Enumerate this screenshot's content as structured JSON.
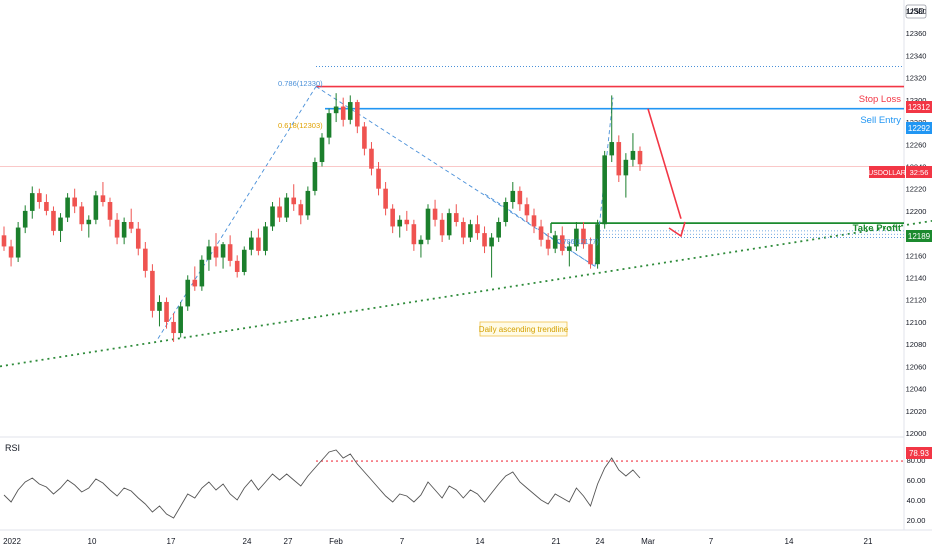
{
  "currency": "USD",
  "price_axis_ticks": [
    "12380",
    "12360",
    "12340",
    "12320",
    "12300",
    "12280",
    "12260",
    "12240",
    "12220",
    "12200",
    "12180",
    "12160",
    "12140",
    "12120",
    "12100",
    "12080",
    "12060",
    "12040",
    "12020",
    "12000"
  ],
  "rsi_axis_ticks": [
    "80.00",
    "60.00",
    "40.00",
    "20.00"
  ],
  "date_ticks": [
    "2022",
    "10",
    "17",
    "24",
    "27",
    "Feb",
    "7",
    "14",
    "21",
    "24",
    "Mar",
    "7",
    "14",
    "21"
  ],
  "labels": {
    "fib_786": "0.786(12330)",
    "fib_618": "0.618(12303)",
    "fib_786_small": "0.786(12177)",
    "stop_loss": "Stop Loss",
    "sell_entry": "Sell Entry",
    "take_profit": "Take Profit",
    "trendline_note": "Daily ascending trendline",
    "rsi": "RSI"
  },
  "badges": {
    "stop_loss": "12312",
    "sell_entry": "12292",
    "take_profit": "12189",
    "symbol": "USDOLLAR",
    "countdown": "32:56",
    "rsi_level": "78.93"
  },
  "colors": {
    "up": "#26a69a",
    "up_dark": "#1b7f2c",
    "down": "#ef5350",
    "stop": "#f23645",
    "entry": "#2196f3",
    "take": "#1b8a2e",
    "trend": "#2e8b3a",
    "fib": "#4a90d9",
    "fib618": "#e0a100",
    "rsi_line": "#555555",
    "rsi_dots": "#f23645"
  },
  "chart_data": {
    "type": "candlestick",
    "symbol": "USDOLLAR",
    "y_range": [
      11990,
      12390
    ],
    "levels": {
      "stop_loss": 12312,
      "sell_entry": 12292,
      "take_profit": 12189,
      "fib_786": 12330,
      "fib_618": 12303,
      "fib_786_small": 12177
    },
    "trendline": {
      "from": [
        0,
        12060
      ],
      "to": [
        932,
        12191
      ]
    },
    "rsi": {
      "range": [
        10,
        100
      ],
      "overbought_level": 78.93
    },
    "candles": [
      [
        12178,
        12186,
        12164,
        12168
      ],
      [
        12168,
        12174,
        12150,
        12158
      ],
      [
        12158,
        12190,
        12154,
        12185
      ],
      [
        12185,
        12205,
        12180,
        12200
      ],
      [
        12200,
        12222,
        12193,
        12216
      ],
      [
        12216,
        12220,
        12202,
        12208
      ],
      [
        12208,
        12215,
        12196,
        12200
      ],
      [
        12200,
        12204,
        12178,
        12182
      ],
      [
        12182,
        12198,
        12172,
        12194
      ],
      [
        12194,
        12216,
        12190,
        12212
      ],
      [
        12212,
        12220,
        12198,
        12204
      ],
      [
        12204,
        12208,
        12182,
        12188
      ],
      [
        12188,
        12196,
        12176,
        12192
      ],
      [
        12192,
        12218,
        12188,
        12214
      ],
      [
        12214,
        12226,
        12204,
        12208
      ],
      [
        12208,
        12212,
        12186,
        12192
      ],
      [
        12192,
        12198,
        12170,
        12176
      ],
      [
        12176,
        12194,
        12170,
        12190
      ],
      [
        12190,
        12202,
        12180,
        12184
      ],
      [
        12184,
        12190,
        12160,
        12166
      ],
      [
        12166,
        12172,
        12140,
        12146
      ],
      [
        12146,
        12152,
        12104,
        12110
      ],
      [
        12110,
        12124,
        12096,
        12118
      ],
      [
        12118,
        12122,
        12094,
        12100
      ],
      [
        12100,
        12108,
        12082,
        12090
      ],
      [
        12090,
        12118,
        12086,
        12114
      ],
      [
        12114,
        12142,
        12110,
        12138
      ],
      [
        12138,
        12150,
        12128,
        12132
      ],
      [
        12132,
        12160,
        12128,
        12156
      ],
      [
        12156,
        12174,
        12146,
        12168
      ],
      [
        12168,
        12180,
        12150,
        12158
      ],
      [
        12158,
        12172,
        12148,
        12170
      ],
      [
        12170,
        12178,
        12150,
        12155
      ],
      [
        12155,
        12160,
        12140,
        12145
      ],
      [
        12145,
        12168,
        12142,
        12165
      ],
      [
        12165,
        12182,
        12160,
        12176
      ],
      [
        12176,
        12184,
        12160,
        12164
      ],
      [
        12164,
        12190,
        12160,
        12186
      ],
      [
        12186,
        12208,
        12182,
        12204
      ],
      [
        12204,
        12212,
        12190,
        12194
      ],
      [
        12194,
        12216,
        12190,
        12212
      ],
      [
        12212,
        12224,
        12200,
        12206
      ],
      [
        12206,
        12210,
        12188,
        12196
      ],
      [
        12196,
        12222,
        12192,
        12218
      ],
      [
        12218,
        12248,
        12214,
        12244
      ],
      [
        12244,
        12270,
        12240,
        12266
      ],
      [
        12266,
        12292,
        12260,
        12288
      ],
      [
        12288,
        12306,
        12280,
        12294
      ],
      [
        12294,
        12302,
        12276,
        12282
      ],
      [
        12282,
        12304,
        12278,
        12298
      ],
      [
        12298,
        12300,
        12270,
        12276
      ],
      [
        12276,
        12280,
        12250,
        12256
      ],
      [
        12256,
        12262,
        12232,
        12238
      ],
      [
        12238,
        12244,
        12214,
        12220
      ],
      [
        12220,
        12226,
        12196,
        12202
      ],
      [
        12202,
        12206,
        12180,
        12186
      ],
      [
        12186,
        12196,
        12176,
        12192
      ],
      [
        12192,
        12200,
        12182,
        12188
      ],
      [
        12188,
        12192,
        12164,
        12170
      ],
      [
        12170,
        12178,
        12158,
        12174
      ],
      [
        12174,
        12206,
        12170,
        12202
      ],
      [
        12202,
        12210,
        12186,
        12192
      ],
      [
        12192,
        12198,
        12172,
        12178
      ],
      [
        12178,
        12202,
        12174,
        12198
      ],
      [
        12198,
        12206,
        12186,
        12190
      ],
      [
        12190,
        12194,
        12170,
        12176
      ],
      [
        12176,
        12192,
        12172,
        12188
      ],
      [
        12188,
        12196,
        12174,
        12180
      ],
      [
        12180,
        12186,
        12162,
        12168
      ],
      [
        12168,
        12180,
        12140,
        12176
      ],
      [
        12176,
        12194,
        12172,
        12190
      ],
      [
        12190,
        12212,
        12186,
        12208
      ],
      [
        12208,
        12226,
        12202,
        12218
      ],
      [
        12218,
        12222,
        12200,
        12206
      ],
      [
        12206,
        12212,
        12190,
        12196
      ],
      [
        12196,
        12202,
        12180,
        12186
      ],
      [
        12186,
        12192,
        12168,
        12174
      ],
      [
        12174,
        12180,
        12160,
        12166
      ],
      [
        12166,
        12182,
        12162,
        12178
      ],
      [
        12178,
        12186,
        12160,
        12164
      ],
      [
        12164,
        12172,
        12150,
        12168
      ],
      [
        12168,
        12190,
        12164,
        12184
      ],
      [
        12184,
        12190,
        12166,
        12170
      ],
      [
        12170,
        12176,
        12148,
        12152
      ],
      [
        12152,
        12192,
        12148,
        12188
      ],
      [
        12188,
        12254,
        12184,
        12250
      ],
      [
        12250,
        12304,
        12244,
        12262
      ],
      [
        12262,
        12268,
        12226,
        12232
      ],
      [
        12232,
        12252,
        12212,
        12246
      ],
      [
        12246,
        12270,
        12240,
        12254
      ],
      [
        12254,
        12258,
        12236,
        12242
      ]
    ],
    "rsi_values": [
      45,
      38,
      50,
      58,
      62,
      56,
      53,
      46,
      52,
      60,
      55,
      48,
      52,
      61,
      57,
      50,
      44,
      52,
      49,
      42,
      36,
      28,
      34,
      26,
      22,
      34,
      46,
      42,
      52,
      58,
      50,
      56,
      46,
      40,
      52,
      60,
      50,
      58,
      66,
      60,
      66,
      60,
      54,
      64,
      72,
      80,
      88,
      90,
      82,
      86,
      76,
      68,
      60,
      52,
      44,
      38,
      46,
      44,
      38,
      45,
      58,
      50,
      42,
      54,
      50,
      42,
      50,
      46,
      38,
      47,
      56,
      64,
      68,
      58,
      52,
      46,
      40,
      36,
      46,
      42,
      38,
      52,
      44,
      34,
      56,
      72,
      82,
      70,
      64,
      70,
      62
    ]
  }
}
